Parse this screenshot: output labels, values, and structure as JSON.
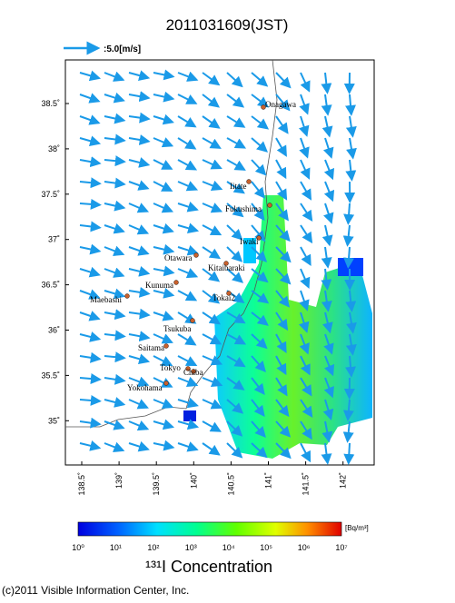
{
  "header": {
    "title": "2011031609(JST)",
    "wind_scale": ":5.0[m/s]"
  },
  "map": {
    "lat_labels": [
      "38.5˚",
      "38˚",
      "37.5˚",
      "37˚",
      "36.5˚",
      "36˚",
      "35.5˚",
      "35˚"
    ],
    "lon_labels": [
      "138.5˚",
      "139˚",
      "139.5˚",
      "140˚",
      "140.5˚",
      "141˚",
      "141.5˚",
      "142˚"
    ],
    "places": [
      "Onagawa",
      "Iitate",
      "Fukushima",
      "Iwaki",
      "Otawara",
      "Kitaibaraki",
      "Kunuma",
      "Tokai2",
      "Maebashi",
      "Tsukuba",
      "Saitama",
      "Tokyo",
      "Chiba",
      "Yokohama"
    ]
  },
  "colorbar": {
    "labels": [
      "10⁰",
      "10¹",
      "10²",
      "10³",
      "10⁴",
      "10⁵",
      "10⁶",
      "10⁷"
    ],
    "unit": "[Bq/m³]",
    "title": "¹³¹I Concentration"
  },
  "footer": "(c)2011 Visible Information Center, Inc."
}
